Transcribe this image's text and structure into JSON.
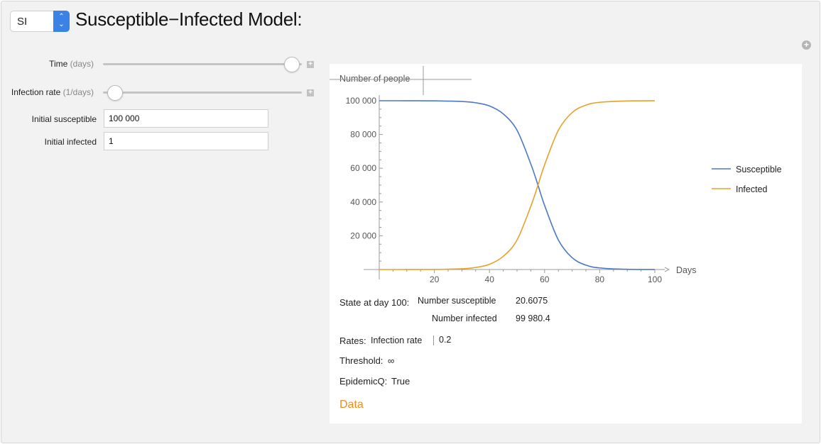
{
  "header": {
    "model_select": {
      "value": "SI"
    },
    "title": "Susceptible−Infected Model:"
  },
  "controls": {
    "time": {
      "label": "Time",
      "unit": "(days)",
      "position": 0.95
    },
    "infection_rate": {
      "label": "Infection rate",
      "unit": "(1/days)",
      "position": 0.06
    },
    "initial_susceptible": {
      "label": "Initial susceptible",
      "value": "100 000"
    },
    "initial_infected": {
      "label": "Initial infected",
      "value": "1"
    }
  },
  "icons": {
    "settings": "plus-circle-icon",
    "slider_expand": "plus-square-icon",
    "select_stepper": "chevron-up-down-icon"
  },
  "colors": {
    "susceptible": "#4c78c4",
    "infected": "#e8a02b",
    "accent_orange": "#ef8d1c",
    "select_blue": "#3b82e6"
  },
  "chart_data": {
    "type": "line",
    "title": "",
    "xlabel": "Days",
    "ylabel": "Number of people",
    "xlim": [
      0,
      100
    ],
    "ylim": [
      0,
      100000
    ],
    "x_ticks": [
      20,
      40,
      60,
      80,
      100
    ],
    "y_ticks": [
      20000,
      40000,
      60000,
      80000,
      100000
    ],
    "x_tick_labels": [
      "20",
      "40",
      "60",
      "80",
      "100"
    ],
    "y_tick_labels": [
      "20 000",
      "40 000",
      "60 000",
      "80 000",
      "100 000"
    ],
    "legend_position": "right",
    "series": [
      {
        "name": "Susceptible",
        "x": [
          0,
          10,
          20,
          30,
          35,
          40,
          45,
          50,
          55,
          57.6,
          60,
          65,
          70,
          75,
          80,
          90,
          100
        ],
        "y": [
          99999,
          99992,
          99940,
          99550,
          98800,
          96900,
          92200,
          82500,
          62500,
          50000,
          38000,
          17500,
          7000,
          2600,
          950,
          130,
          20.6
        ]
      },
      {
        "name": "Infected",
        "x": [
          0,
          10,
          20,
          30,
          35,
          40,
          45,
          50,
          55,
          57.6,
          60,
          65,
          70,
          75,
          80,
          90,
          100
        ],
        "y": [
          1,
          8,
          60,
          450,
          1200,
          3100,
          7800,
          17500,
          37500,
          50000,
          62000,
          82500,
          93000,
          97400,
          99050,
          99870,
          99980.4
        ]
      }
    ]
  },
  "results": {
    "state_label": "State at day 100:",
    "table": [
      {
        "label": "Number susceptible",
        "value": "20.6075"
      },
      {
        "label": "Number infected",
        "value": "99 980.4"
      }
    ],
    "rates_label": "Rates:",
    "rates_name": "Infection rate",
    "rates_value": "0.2",
    "threshold_label": "Threshold:",
    "threshold_value": "∞",
    "epidemic_label": "EpidemicQ:",
    "epidemic_value": "True",
    "data_link": "Data"
  }
}
